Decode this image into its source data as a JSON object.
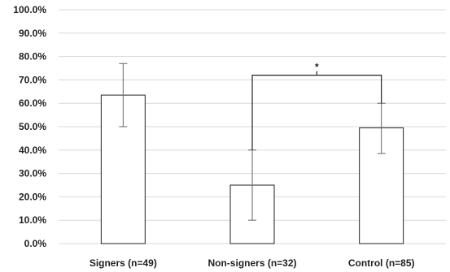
{
  "chart_data": {
    "type": "bar",
    "title": "",
    "xlabel": "",
    "ylabel": "",
    "categories": [
      "Signers (n=49)",
      "Non-signers (n=32)",
      "Control (n=85)"
    ],
    "values": [
      63.5,
      25.0,
      49.5
    ],
    "error_low": [
      50.0,
      10.0,
      38.5
    ],
    "error_high": [
      77.0,
      40.0,
      60.0
    ],
    "ylim": [
      0,
      100
    ],
    "yticks": [
      0,
      10,
      20,
      30,
      40,
      50,
      60,
      70,
      80,
      90,
      100
    ],
    "ytick_labels": [
      "0.0%",
      "10.0%",
      "20.0%",
      "30.0%",
      "40.0%",
      "50.0%",
      "60.0%",
      "70.0%",
      "80.0%",
      "90.0%",
      "100.0%"
    ],
    "grid": true,
    "significance": [
      {
        "from": 1,
        "to": 2,
        "y": 72.0,
        "label": "*"
      }
    ],
    "colors": {
      "bar_fill": "#ffffff",
      "bar_stroke": "#222222",
      "grid": "#d9d9d9",
      "error": "#666666"
    }
  }
}
